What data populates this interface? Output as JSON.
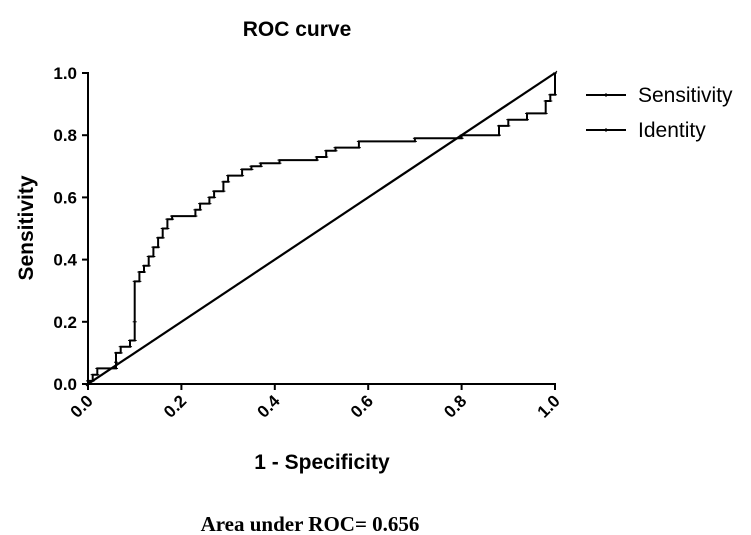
{
  "chart_data": {
    "type": "line",
    "title": "ROC curve",
    "xlabel": "1 - Specificity",
    "ylabel": "Sensitivity",
    "xlim": [
      0,
      1
    ],
    "ylim": [
      0,
      1
    ],
    "x_ticks": [
      "0.0",
      "0.2",
      "0.4",
      "0.6",
      "0.8",
      "1.0"
    ],
    "y_ticks": [
      "0.0",
      "0.2",
      "0.4",
      "0.6",
      "0.8",
      "1.0"
    ],
    "legend": {
      "placement": "top-right"
    },
    "series": [
      {
        "name": "Sensitivity",
        "color": "#000000",
        "step": true,
        "points": [
          [
            0,
            0
          ],
          [
            0,
            0.01
          ],
          [
            0.01,
            0.01
          ],
          [
            0.01,
            0.03
          ],
          [
            0.02,
            0.03
          ],
          [
            0.02,
            0.05
          ],
          [
            0.06,
            0.05
          ],
          [
            0.06,
            0.07
          ],
          [
            0.06,
            0.1
          ],
          [
            0.07,
            0.1
          ],
          [
            0.07,
            0.12
          ],
          [
            0.09,
            0.12
          ],
          [
            0.09,
            0.14
          ],
          [
            0.1,
            0.14
          ],
          [
            0.1,
            0.2
          ],
          [
            0.1,
            0.33
          ],
          [
            0.11,
            0.33
          ],
          [
            0.11,
            0.36
          ],
          [
            0.12,
            0.36
          ],
          [
            0.12,
            0.38
          ],
          [
            0.13,
            0.38
          ],
          [
            0.13,
            0.41
          ],
          [
            0.14,
            0.41
          ],
          [
            0.14,
            0.44
          ],
          [
            0.15,
            0.44
          ],
          [
            0.15,
            0.47
          ],
          [
            0.16,
            0.47
          ],
          [
            0.16,
            0.5
          ],
          [
            0.17,
            0.5
          ],
          [
            0.17,
            0.53
          ],
          [
            0.18,
            0.53
          ],
          [
            0.18,
            0.54
          ],
          [
            0.23,
            0.54
          ],
          [
            0.23,
            0.56
          ],
          [
            0.24,
            0.56
          ],
          [
            0.24,
            0.58
          ],
          [
            0.26,
            0.58
          ],
          [
            0.26,
            0.6
          ],
          [
            0.27,
            0.6
          ],
          [
            0.27,
            0.62
          ],
          [
            0.29,
            0.62
          ],
          [
            0.29,
            0.65
          ],
          [
            0.3,
            0.65
          ],
          [
            0.3,
            0.67
          ],
          [
            0.33,
            0.67
          ],
          [
            0.33,
            0.69
          ],
          [
            0.35,
            0.69
          ],
          [
            0.35,
            0.7
          ],
          [
            0.37,
            0.7
          ],
          [
            0.37,
            0.71
          ],
          [
            0.41,
            0.71
          ],
          [
            0.41,
            0.72
          ],
          [
            0.49,
            0.72
          ],
          [
            0.49,
            0.73
          ],
          [
            0.51,
            0.73
          ],
          [
            0.51,
            0.75
          ],
          [
            0.53,
            0.75
          ],
          [
            0.53,
            0.76
          ],
          [
            0.58,
            0.76
          ],
          [
            0.58,
            0.78
          ],
          [
            0.7,
            0.78
          ],
          [
            0.7,
            0.79
          ],
          [
            0.8,
            0.79
          ],
          [
            0.8,
            0.8
          ],
          [
            0.88,
            0.8
          ],
          [
            0.88,
            0.83
          ],
          [
            0.9,
            0.83
          ],
          [
            0.9,
            0.85
          ],
          [
            0.94,
            0.85
          ],
          [
            0.94,
            0.87
          ],
          [
            0.98,
            0.87
          ],
          [
            0.98,
            0.91
          ],
          [
            0.99,
            0.91
          ],
          [
            0.99,
            0.93
          ],
          [
            1.0,
            0.93
          ],
          [
            1.0,
            1.0
          ]
        ]
      },
      {
        "name": "Identity",
        "color": "#000000",
        "step": false,
        "points": [
          [
            0,
            0
          ],
          [
            1,
            1
          ]
        ]
      }
    ],
    "annotation": "Area under ROC= 0.656"
  }
}
